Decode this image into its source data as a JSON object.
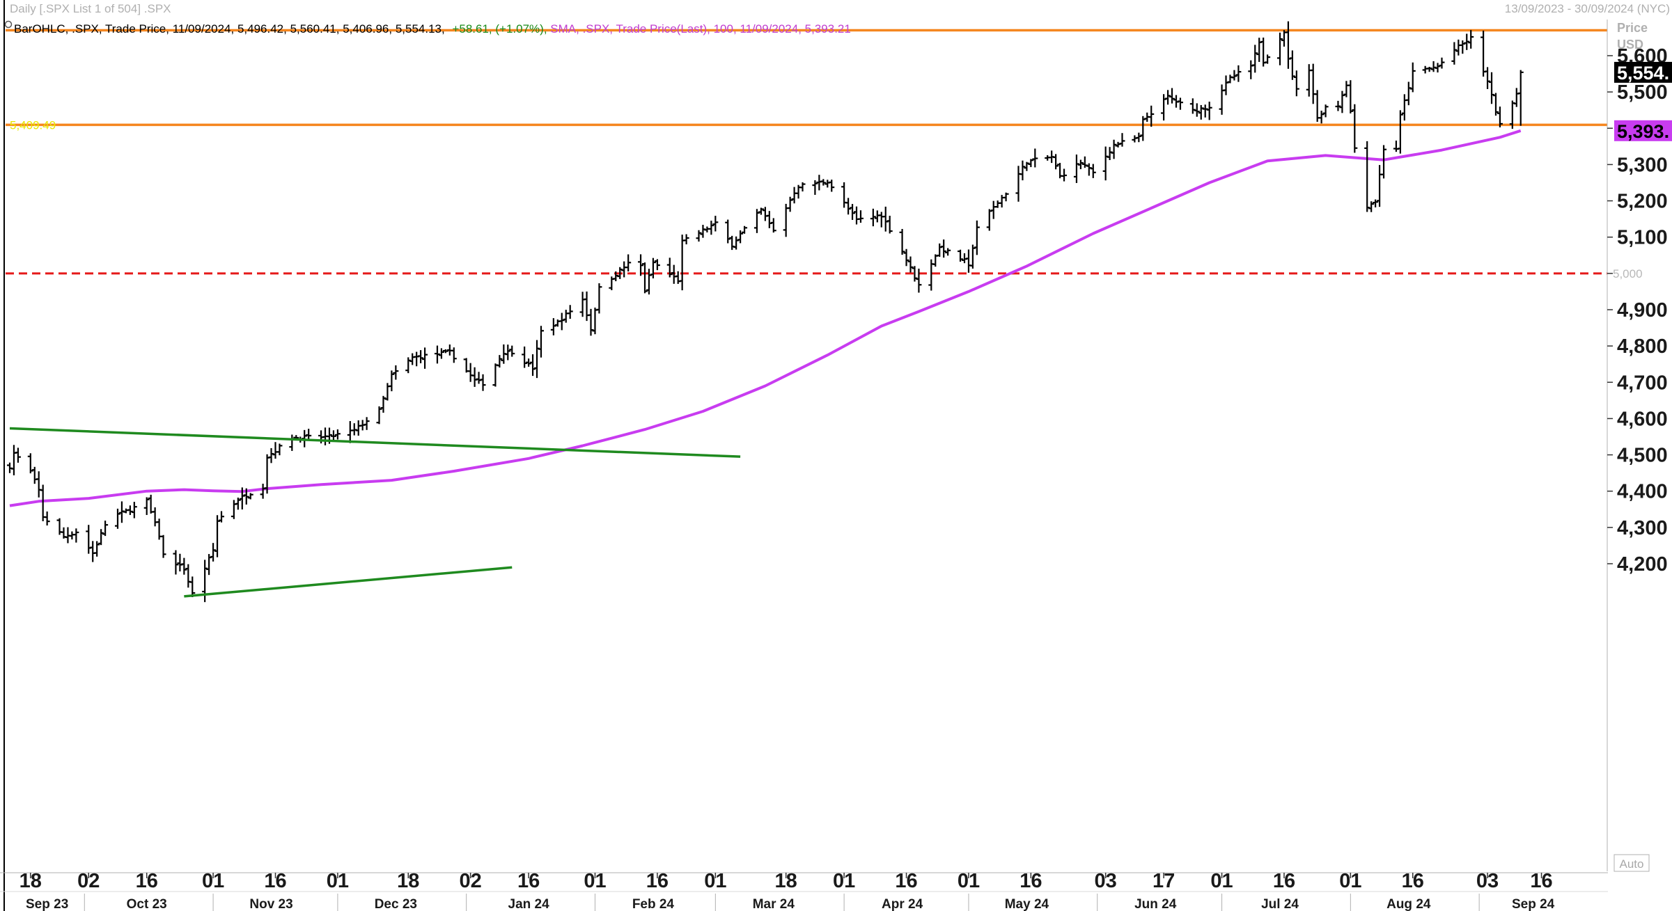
{
  "header": {
    "left": "Daily [.SPX List 1 of 504] .SPX",
    "right": "13/09/2023 - 30/09/2024 (NYC)"
  },
  "legend": {
    "ohlc": {
      "prefix": "BarOHLC, .SPX, Trade Price, 11/09/2024, 5,496.42, 5,560.41, 5,406.96, 5,554.13,",
      "change": "+58.61, (+1.07%),",
      "color": "#000000",
      "change_color": "#1a8a1a"
    },
    "sma": {
      "text": "SMA, .SPX, Trade Price(Last),   100, 11/09/2024, 5,393.21",
      "color": "#c040d0"
    }
  },
  "axis": {
    "price_label": "Price",
    "currency_label": "USD",
    "auto_label": "Auto"
  },
  "colors": {
    "bars": "#000000",
    "sma": "#c83cf0",
    "resistance": "#f5861f",
    "support_dashed": "#e51919",
    "trendline": "#1f8a1f",
    "last_badge_bg": "#000000",
    "sma_badge_bg": "#c83cf0"
  },
  "chart_data": {
    "type": "bar_ohlc",
    "ylim": [
      4115,
      5670
    ],
    "yticks": [
      4200,
      4300,
      4400,
      4500,
      4600,
      4700,
      4800,
      4900,
      5000,
      5100,
      5200,
      5300,
      5400,
      5500,
      5600
    ],
    "ytick_labels": [
      "4,200",
      "4,300",
      "4,400",
      "4,500",
      "4,600",
      "4,700",
      "4,800",
      "4,900",
      "",
      "5,100",
      "5,200",
      "5,300",
      "",
      "5,500",
      "5,600"
    ],
    "x_date_range": [
      "2023-09-13",
      "2024-09-30"
    ],
    "x_day_ticks": [
      {
        "date": "2023-09-18",
        "label": "18"
      },
      {
        "date": "2023-10-02",
        "label": "02"
      },
      {
        "date": "2023-10-16",
        "label": "16"
      },
      {
        "date": "2023-11-01",
        "label": "01"
      },
      {
        "date": "2023-11-16",
        "label": "16"
      },
      {
        "date": "2023-12-01",
        "label": "01"
      },
      {
        "date": "2023-12-18",
        "label": "18"
      },
      {
        "date": "2024-01-02",
        "label": "02"
      },
      {
        "date": "2024-01-16",
        "label": "16"
      },
      {
        "date": "2024-02-01",
        "label": "01"
      },
      {
        "date": "2024-02-16",
        "label": "16"
      },
      {
        "date": "2024-03-01",
        "label": "01"
      },
      {
        "date": "2024-03-18",
        "label": "18"
      },
      {
        "date": "2024-04-01",
        "label": "01"
      },
      {
        "date": "2024-04-16",
        "label": "16"
      },
      {
        "date": "2024-05-01",
        "label": "01"
      },
      {
        "date": "2024-05-16",
        "label": "16"
      },
      {
        "date": "2024-06-03",
        "label": "03"
      },
      {
        "date": "2024-06-17",
        "label": "17"
      },
      {
        "date": "2024-07-01",
        "label": "01"
      },
      {
        "date": "2024-07-16",
        "label": "16"
      },
      {
        "date": "2024-08-01",
        "label": "01"
      },
      {
        "date": "2024-08-16",
        "label": "16"
      },
      {
        "date": "2024-09-03",
        "label": "03"
      },
      {
        "date": "2024-09-16",
        "label": "16"
      }
    ],
    "x_month_labels": [
      {
        "date": "2023-09-22",
        "label": "Sep 23"
      },
      {
        "date": "2023-10-16",
        "label": "Oct 23"
      },
      {
        "date": "2023-11-15",
        "label": "Nov 23"
      },
      {
        "date": "2023-12-15",
        "label": "Dec 23"
      },
      {
        "date": "2024-01-16",
        "label": "Jan 24"
      },
      {
        "date": "2024-02-15",
        "label": "Feb 24"
      },
      {
        "date": "2024-03-15",
        "label": "Mar 24"
      },
      {
        "date": "2024-04-15",
        "label": "Apr 24"
      },
      {
        "date": "2024-05-15",
        "label": "May 24"
      },
      {
        "date": "2024-06-15",
        "label": "Jun 24"
      },
      {
        "date": "2024-07-15",
        "label": "Jul 24"
      },
      {
        "date": "2024-08-15",
        "label": "Aug 24"
      },
      {
        "date": "2024-09-14",
        "label": "Sep 24"
      }
    ],
    "month_boundaries": [
      "2023-10-01",
      "2023-11-01",
      "2023-12-01",
      "2024-01-01",
      "2024-02-01",
      "2024-03-01",
      "2024-04-01",
      "2024-05-01",
      "2024-06-01",
      "2024-07-01",
      "2024-08-01",
      "2024-09-01"
    ],
    "ohlc_anchors": [
      [
        "2023-09-13",
        4468
      ],
      [
        "2023-09-14",
        4505
      ],
      [
        "2023-09-18",
        4454
      ],
      [
        "2023-09-20",
        4402
      ],
      [
        "2023-09-21",
        4330
      ],
      [
        "2023-09-26",
        4274
      ],
      [
        "2023-09-29",
        4288
      ],
      [
        "2023-10-03",
        4229
      ],
      [
        "2023-10-06",
        4308
      ],
      [
        "2023-10-09",
        4336
      ],
      [
        "2023-10-12",
        4349
      ],
      [
        "2023-10-16",
        4373
      ],
      [
        "2023-10-19",
        4278
      ],
      [
        "2023-10-20",
        4224
      ],
      [
        "2023-10-25",
        4186
      ],
      [
        "2023-10-27",
        4117
      ],
      [
        "2023-11-01",
        4237
      ],
      [
        "2023-11-02",
        4318
      ],
      [
        "2023-11-07",
        4378
      ],
      [
        "2023-11-13",
        4412
      ],
      [
        "2023-11-14",
        4495
      ],
      [
        "2023-11-20",
        4547
      ],
      [
        "2023-11-29",
        4550
      ],
      [
        "2023-12-05",
        4567
      ],
      [
        "2023-12-11",
        4622
      ],
      [
        "2023-12-14",
        4719
      ],
      [
        "2023-12-19",
        4768
      ],
      [
        "2023-12-28",
        4783
      ],
      [
        "2024-01-03",
        4705
      ],
      [
        "2024-01-05",
        4697
      ],
      [
        "2024-01-10",
        4783
      ],
      [
        "2024-01-12",
        4784
      ],
      [
        "2024-01-17",
        4739
      ],
      [
        "2024-01-19",
        4840
      ],
      [
        "2024-01-23",
        4865
      ],
      [
        "2024-01-29",
        4928
      ],
      [
        "2024-01-31",
        4846
      ],
      [
        "2024-02-02",
        4959
      ],
      [
        "2024-02-09",
        5027
      ],
      [
        "2024-02-12",
        5021
      ],
      [
        "2024-02-13",
        4953
      ],
      [
        "2024-02-15",
        5030
      ],
      [
        "2024-02-21",
        4981
      ],
      [
        "2024-02-22",
        5087
      ],
      [
        "2024-03-01",
        5137
      ],
      [
        "2024-03-05",
        5079
      ],
      [
        "2024-03-08",
        5123
      ],
      [
        "2024-03-12",
        5175
      ],
      [
        "2024-03-15",
        5117
      ],
      [
        "2024-03-20",
        5224
      ],
      [
        "2024-03-21",
        5241
      ],
      [
        "2024-03-28",
        5254
      ],
      [
        "2024-04-04",
        5147
      ],
      [
        "2024-04-10",
        5161
      ],
      [
        "2024-04-15",
        5061
      ],
      [
        "2024-04-19",
        4967
      ],
      [
        "2024-04-24",
        5071
      ],
      [
        "2024-04-30",
        5035
      ],
      [
        "2024-05-01",
        5018
      ],
      [
        "2024-05-03",
        5128
      ],
      [
        "2024-05-10",
        5222
      ],
      [
        "2024-05-15",
        5308
      ],
      [
        "2024-05-21",
        5321
      ],
      [
        "2024-05-23",
        5267
      ],
      [
        "2024-05-28",
        5306
      ],
      [
        "2024-05-31",
        5277
      ],
      [
        "2024-06-05",
        5354
      ],
      [
        "2024-06-11",
        5375
      ],
      [
        "2024-06-12",
        5421
      ],
      [
        "2024-06-18",
        5487
      ],
      [
        "2024-06-24",
        5448
      ],
      [
        "2024-06-28",
        5460
      ],
      [
        "2024-07-03",
        5537
      ],
      [
        "2024-07-08",
        5572
      ],
      [
        "2024-07-10",
        5633
      ],
      [
        "2024-07-11",
        5584
      ],
      [
        "2024-07-16",
        5667
      ],
      [
        "2024-07-17",
        5588
      ],
      [
        "2024-07-19",
        5505
      ],
      [
        "2024-07-22",
        5564
      ],
      [
        "2024-07-24",
        5427
      ],
      [
        "2024-07-26",
        5459
      ],
      [
        "2024-07-29",
        5463
      ],
      [
        "2024-07-31",
        5522
      ],
      [
        "2024-08-01",
        5446
      ],
      [
        "2024-08-02",
        5346
      ],
      [
        "2024-08-05",
        5186
      ],
      [
        "2024-08-07",
        5199
      ],
      [
        "2024-08-09",
        5344
      ],
      [
        "2024-08-12",
        5344
      ],
      [
        "2024-08-13",
        5434
      ],
      [
        "2024-08-16",
        5554
      ],
      [
        "2024-08-22",
        5570
      ],
      [
        "2024-08-26",
        5616
      ],
      [
        "2024-08-30",
        5648
      ],
      [
        "2024-09-03",
        5528
      ],
      [
        "2024-09-06",
        5408
      ],
      [
        "2024-09-10",
        5496
      ],
      [
        "2024-09-11",
        5554
      ]
    ],
    "last_bar": {
      "date": "2024-09-11",
      "open": 5496.42,
      "high": 5560.41,
      "low": 5406.96,
      "close": 5554.13
    },
    "sma_anchors": [
      [
        "2023-09-13",
        4360
      ],
      [
        "2023-09-20",
        4372
      ],
      [
        "2023-10-02",
        4380
      ],
      [
        "2023-10-16",
        4400
      ],
      [
        "2023-10-25",
        4404
      ],
      [
        "2023-11-01",
        4401
      ],
      [
        "2023-11-08",
        4399
      ],
      [
        "2023-11-14",
        4407
      ],
      [
        "2023-11-27",
        4418
      ],
      [
        "2023-12-14",
        4430
      ],
      [
        "2023-12-29",
        4455
      ],
      [
        "2024-01-16",
        4490
      ],
      [
        "2024-01-29",
        4525
      ],
      [
        "2024-02-13",
        4570
      ],
      [
        "2024-02-27",
        4620
      ],
      [
        "2024-03-13",
        4690
      ],
      [
        "2024-03-28",
        4775
      ],
      [
        "2024-04-10",
        4855
      ],
      [
        "2024-04-19",
        4895
      ],
      [
        "2024-05-01",
        4950
      ],
      [
        "2024-05-15",
        5020
      ],
      [
        "2024-05-31",
        5110
      ],
      [
        "2024-06-14",
        5180
      ],
      [
        "2024-06-28",
        5250
      ],
      [
        "2024-07-12",
        5310
      ],
      [
        "2024-07-26",
        5325
      ],
      [
        "2024-08-09",
        5313
      ],
      [
        "2024-08-23",
        5340
      ],
      [
        "2024-09-06",
        5375
      ],
      [
        "2024-09-11",
        5393.21
      ]
    ],
    "horizontal_lines": [
      {
        "name": "resistance-line",
        "value": 5670,
        "style": "solid",
        "color": "#f5861f"
      },
      {
        "name": "resistance-5409-line",
        "value": 5409.49,
        "style": "solid",
        "color": "#f5861f",
        "label": "5,409.49"
      },
      {
        "name": "support-5000-line",
        "value": 5000,
        "style": "dashed",
        "color": "#e51919",
        "label": "5,000"
      }
    ],
    "trendlines": [
      {
        "name": "upper-trendline",
        "from": [
          "2023-09-13",
          4573
        ],
        "to": [
          "2024-03-07",
          4495
        ]
      },
      {
        "name": "lower-trendline",
        "from": [
          "2023-10-25",
          4110
        ],
        "to": [
          "2024-01-12",
          4190
        ]
      }
    ],
    "last_price_badge": "5,554.",
    "sma_badge": "5,393."
  }
}
